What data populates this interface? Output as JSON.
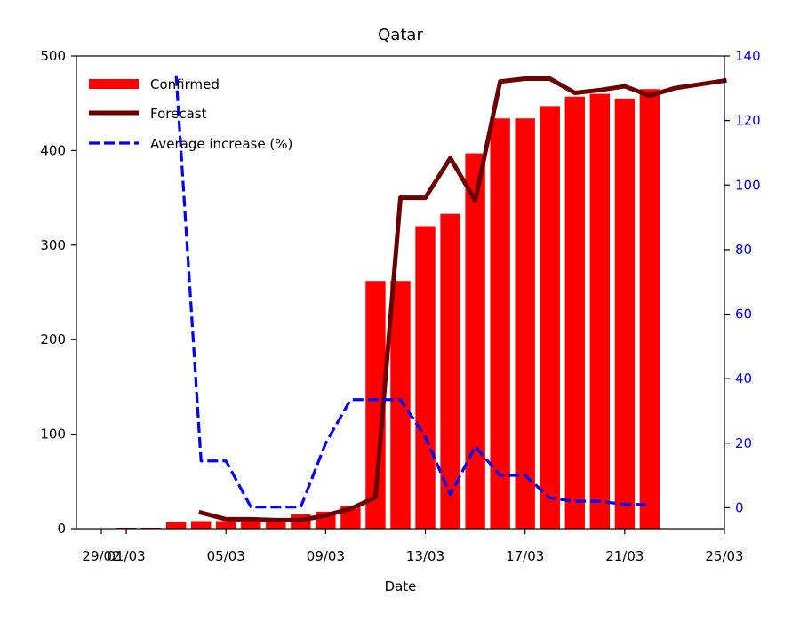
{
  "chart_data": {
    "type": "bar+line",
    "title": "Qatar",
    "xlabel": "Date",
    "ylabel": "",
    "ylim": [
      0,
      500
    ],
    "y2lim": [
      -6.5,
      140
    ],
    "xlim": [
      -1.0,
      25.0
    ],
    "x_ticks": [
      {
        "pos": 0,
        "label": "29/02"
      },
      {
        "pos": 1,
        "label": "01/03"
      },
      {
        "pos": 5,
        "label": "05/03"
      },
      {
        "pos": 9,
        "label": "09/03"
      },
      {
        "pos": 13,
        "label": "13/03"
      },
      {
        "pos": 17,
        "label": "17/03"
      },
      {
        "pos": 21,
        "label": "21/03"
      },
      {
        "pos": 25,
        "label": "25/03"
      }
    ],
    "y_ticks": [
      0,
      100,
      200,
      300,
      400,
      500
    ],
    "y2_ticks": [
      0,
      20,
      40,
      60,
      80,
      100,
      120,
      140
    ],
    "legend_position": "upper-left",
    "colors": {
      "confirmed": "#ff0000",
      "forecast": "#6b0000",
      "average": "#0000ff",
      "right_axis": "#0000ff"
    },
    "series": [
      {
        "name": "Confirmed",
        "kind": "bar",
        "x": [
          1,
          2,
          3,
          4,
          5,
          6,
          7,
          8,
          9,
          10,
          11,
          12,
          13,
          14,
          15,
          16,
          17,
          18,
          19,
          20,
          21,
          22
        ],
        "values": [
          1,
          1,
          7,
          8,
          8,
          8,
          8,
          15,
          18,
          24,
          262,
          262,
          320,
          333,
          397,
          434,
          434,
          447,
          457,
          460,
          455,
          465
        ]
      },
      {
        "name": "Forecast",
        "kind": "line",
        "axis": "left",
        "x": [
          4,
          5,
          6,
          7,
          8,
          9,
          10,
          11,
          12,
          13,
          14,
          15,
          16,
          17,
          18,
          19,
          20,
          21,
          22,
          23,
          24,
          25
        ],
        "values": [
          17,
          10,
          10,
          9,
          9,
          14,
          21,
          33,
          350,
          350,
          392,
          347,
          473,
          476,
          476,
          461,
          464,
          468,
          458,
          466,
          470,
          474
        ]
      },
      {
        "name": "Average increase (%)",
        "kind": "line",
        "axis": "right",
        "x": [
          3,
          4,
          5,
          6,
          7,
          8,
          9,
          10,
          11,
          12,
          13,
          14,
          15,
          16,
          17,
          18,
          19,
          20,
          21,
          22
        ],
        "values": [
          134,
          14.5,
          14.5,
          0.2,
          0.2,
          0.2,
          20,
          33.5,
          33.5,
          33.5,
          22,
          4,
          19,
          10,
          10,
          3,
          2,
          2,
          1,
          1
        ]
      }
    ]
  }
}
